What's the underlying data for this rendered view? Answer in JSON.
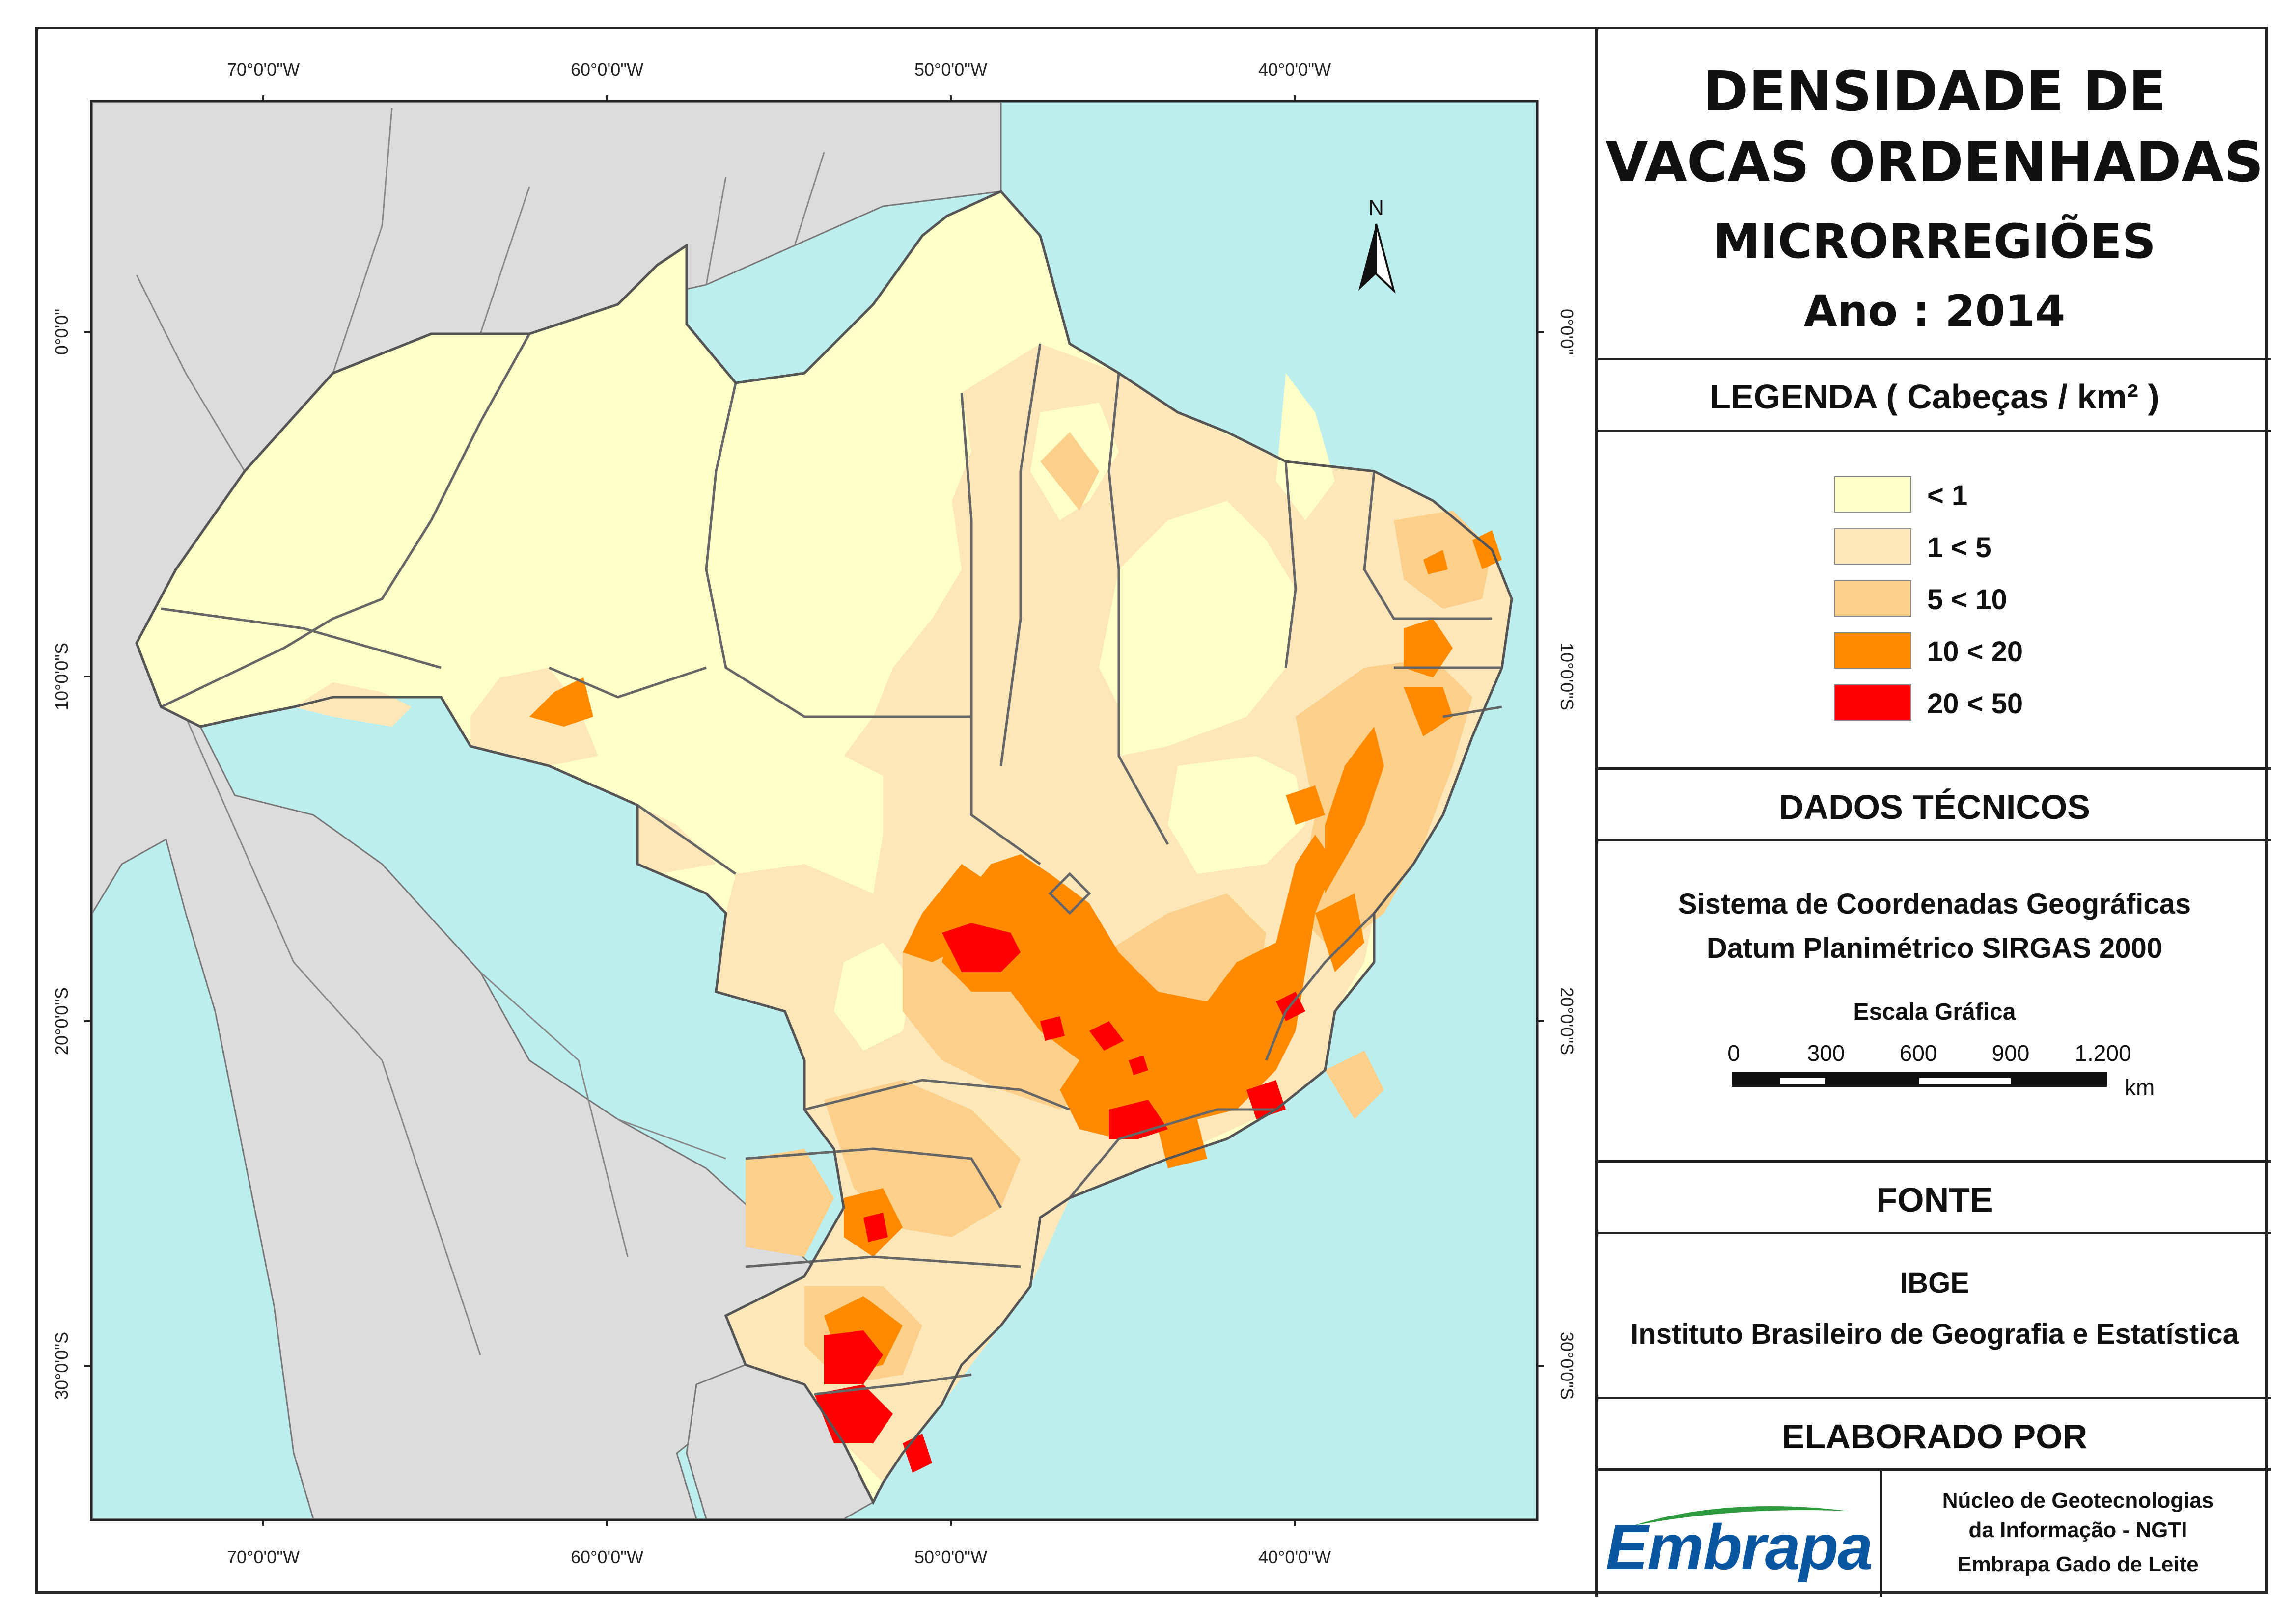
{
  "title": {
    "line1": "DENSIDADE DE",
    "line2": "VACAS ORDENHADAS",
    "line3": "MICRORREGIÕES",
    "line4": "Ano : 2014"
  },
  "legend": {
    "header": "LEGENDA ( Cabeças / km² )",
    "classes": [
      {
        "label": "< 1",
        "color": "#FFFFC8"
      },
      {
        "label": "1 < 5",
        "color": "#FDE7B8"
      },
      {
        "label": "5 < 10",
        "color": "#FCCF8A"
      },
      {
        "label": "10 < 20",
        "color": "#FF8A00"
      },
      {
        "label": "20 < 50",
        "color": "#FF0000"
      }
    ]
  },
  "technical": {
    "header": "DADOS TÉCNICOS",
    "line1": "Sistema de Coordenadas Geográficas",
    "line2": "Datum Planimétrico SIRGAS 2000",
    "scale_title": "Escala Gráfica",
    "scale_ticks": [
      "0",
      "300",
      "600",
      "900",
      "1.200"
    ],
    "scale_unit": "km"
  },
  "source": {
    "header": "FONTE",
    "line1": "IBGE",
    "line2": "Instituto Brasileiro de Geografia e Estatística"
  },
  "credits": {
    "header": "ELABORADO POR",
    "logo_text": "Embrapa",
    "line1": "Núcleo de Geotecnologias",
    "line2": "da Informação - NGTI",
    "line3": "Embrapa Gado de Leite"
  },
  "map": {
    "lon_labels": [
      "70°0'0\"W",
      "60°0'0\"W",
      "50°0'0\"W",
      "40°0'0\"W"
    ],
    "lat_labels": [
      "0°0'0\"",
      "10°0'0\"S",
      "20°0'0\"S",
      "30°0'0\"S"
    ],
    "north_label": "N",
    "colors": {
      "ocean": "#BDEEEE",
      "neighbors": "#DCDCDC",
      "border": "#666666"
    }
  }
}
